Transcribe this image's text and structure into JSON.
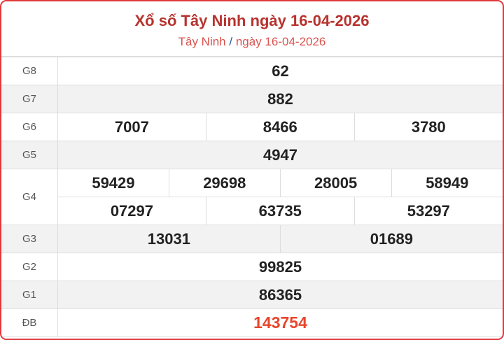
{
  "header": {
    "title": "Xổ số Tây Ninh ngày 16-04-2026",
    "breadcrumb_province": "Tây Ninh",
    "breadcrumb_sep": "/",
    "breadcrumb_date": "ngày 16-04-2026"
  },
  "prizes": {
    "g8": {
      "label": "G8",
      "values": [
        "62"
      ]
    },
    "g7": {
      "label": "G7",
      "values": [
        "882"
      ]
    },
    "g6": {
      "label": "G6",
      "values": [
        "7007",
        "8466",
        "3780"
      ]
    },
    "g5": {
      "label": "G5",
      "values": [
        "4947"
      ]
    },
    "g4": {
      "label": "G4",
      "values": [
        "59429",
        "29698",
        "28005",
        "58949",
        "07297",
        "63735",
        "53297"
      ]
    },
    "g3": {
      "label": "G3",
      "values": [
        "13031",
        "01689"
      ]
    },
    "g2": {
      "label": "G2",
      "values": [
        "99825"
      ]
    },
    "g1": {
      "label": "G1",
      "values": [
        "86365"
      ]
    },
    "db": {
      "label": "ĐB",
      "values": [
        "143754"
      ]
    }
  },
  "colors": {
    "accent": "#e0393b",
    "title": "#b7322e",
    "special": "#e8452c"
  }
}
